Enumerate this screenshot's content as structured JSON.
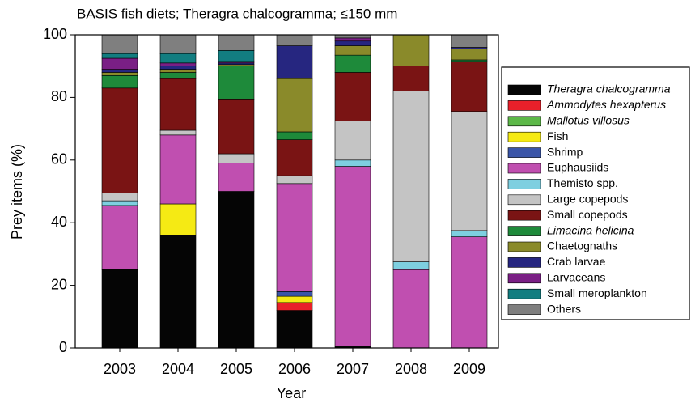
{
  "chart_data": {
    "type": "stacked_bar",
    "title": "BASIS fish diets; Theragra chalcogramma; ≤150 mm",
    "x_label": "Year",
    "y_label": "Prey items (%)",
    "categories": [
      "2003",
      "2004",
      "2005",
      "2006",
      "2007",
      "2008",
      "2009"
    ],
    "ylim": [
      0,
      100
    ],
    "yticks": [
      0,
      20,
      40,
      60,
      80,
      100
    ],
    "legend_position": "right",
    "series": [
      {
        "name": "Theragra chalcogramma",
        "color": "#050505",
        "font_style": "italic",
        "values": [
          25,
          36,
          50,
          12,
          0.5,
          0,
          0
        ]
      },
      {
        "name": "Ammodytes hexapterus",
        "color": "#e8202a",
        "font_style": "italic",
        "values": [
          0,
          0,
          0,
          2.5,
          0,
          0,
          0
        ]
      },
      {
        "name": "Mallotus villosus",
        "color": "#5cb848",
        "font_style": "italic",
        "values": [
          0,
          0,
          0,
          0,
          0,
          0,
          0
        ]
      },
      {
        "name": "Fish",
        "color": "#f5ea14",
        "font_style": "normal",
        "values": [
          0,
          10,
          0,
          2,
          0,
          0,
          0
        ]
      },
      {
        "name": "Shrimp",
        "color": "#3a55a8",
        "font_style": "normal",
        "values": [
          0,
          0,
          0,
          1.5,
          0,
          0,
          0
        ]
      },
      {
        "name": "Euphausiids",
        "color": "#c04fb0",
        "font_style": "normal",
        "values": [
          20.5,
          22,
          9,
          34.5,
          57.5,
          25,
          35.5
        ]
      },
      {
        "name": "Themisto spp.",
        "color": "#7ecfe0",
        "font_style": "normal",
        "values": [
          1.5,
          0,
          0,
          0,
          2,
          2.5,
          2
        ]
      },
      {
        "name": "Large copepods",
        "color": "#c4c4c4",
        "font_style": "normal",
        "values": [
          2.5,
          1.5,
          3,
          2.5,
          12.5,
          54.5,
          38
        ]
      },
      {
        "name": "Small copepods",
        "color": "#7a1414",
        "font_style": "normal",
        "values": [
          33.5,
          16.5,
          17.5,
          11.5,
          15.5,
          8,
          16
        ]
      },
      {
        "name": "Limacina helicina",
        "color": "#1e8a3a",
        "font_style": "italic",
        "values": [
          4,
          2,
          10.5,
          2.5,
          5.5,
          0,
          0.5
        ]
      },
      {
        "name": "Chaetognaths",
        "color": "#8a8a2a",
        "font_style": "normal",
        "values": [
          1,
          1,
          0.5,
          17,
          3,
          10,
          3.5
        ]
      },
      {
        "name": "Crab larvae",
        "color": "#262680",
        "font_style": "normal",
        "values": [
          1,
          1,
          0.5,
          10.5,
          1.5,
          0,
          0.5
        ]
      },
      {
        "name": "Larvaceans",
        "color": "#7a1f85",
        "font_style": "normal",
        "values": [
          3.5,
          1,
          0.5,
          0,
          1,
          0,
          0
        ]
      },
      {
        "name": "Small meroplankton",
        "color": "#127d80",
        "font_style": "normal",
        "values": [
          1.5,
          3,
          3.5,
          0,
          0,
          0,
          0
        ]
      },
      {
        "name": "Others",
        "color": "#7f7f7f",
        "font_style": "normal",
        "values": [
          6,
          6,
          5,
          3.5,
          1,
          0,
          4
        ]
      }
    ]
  }
}
